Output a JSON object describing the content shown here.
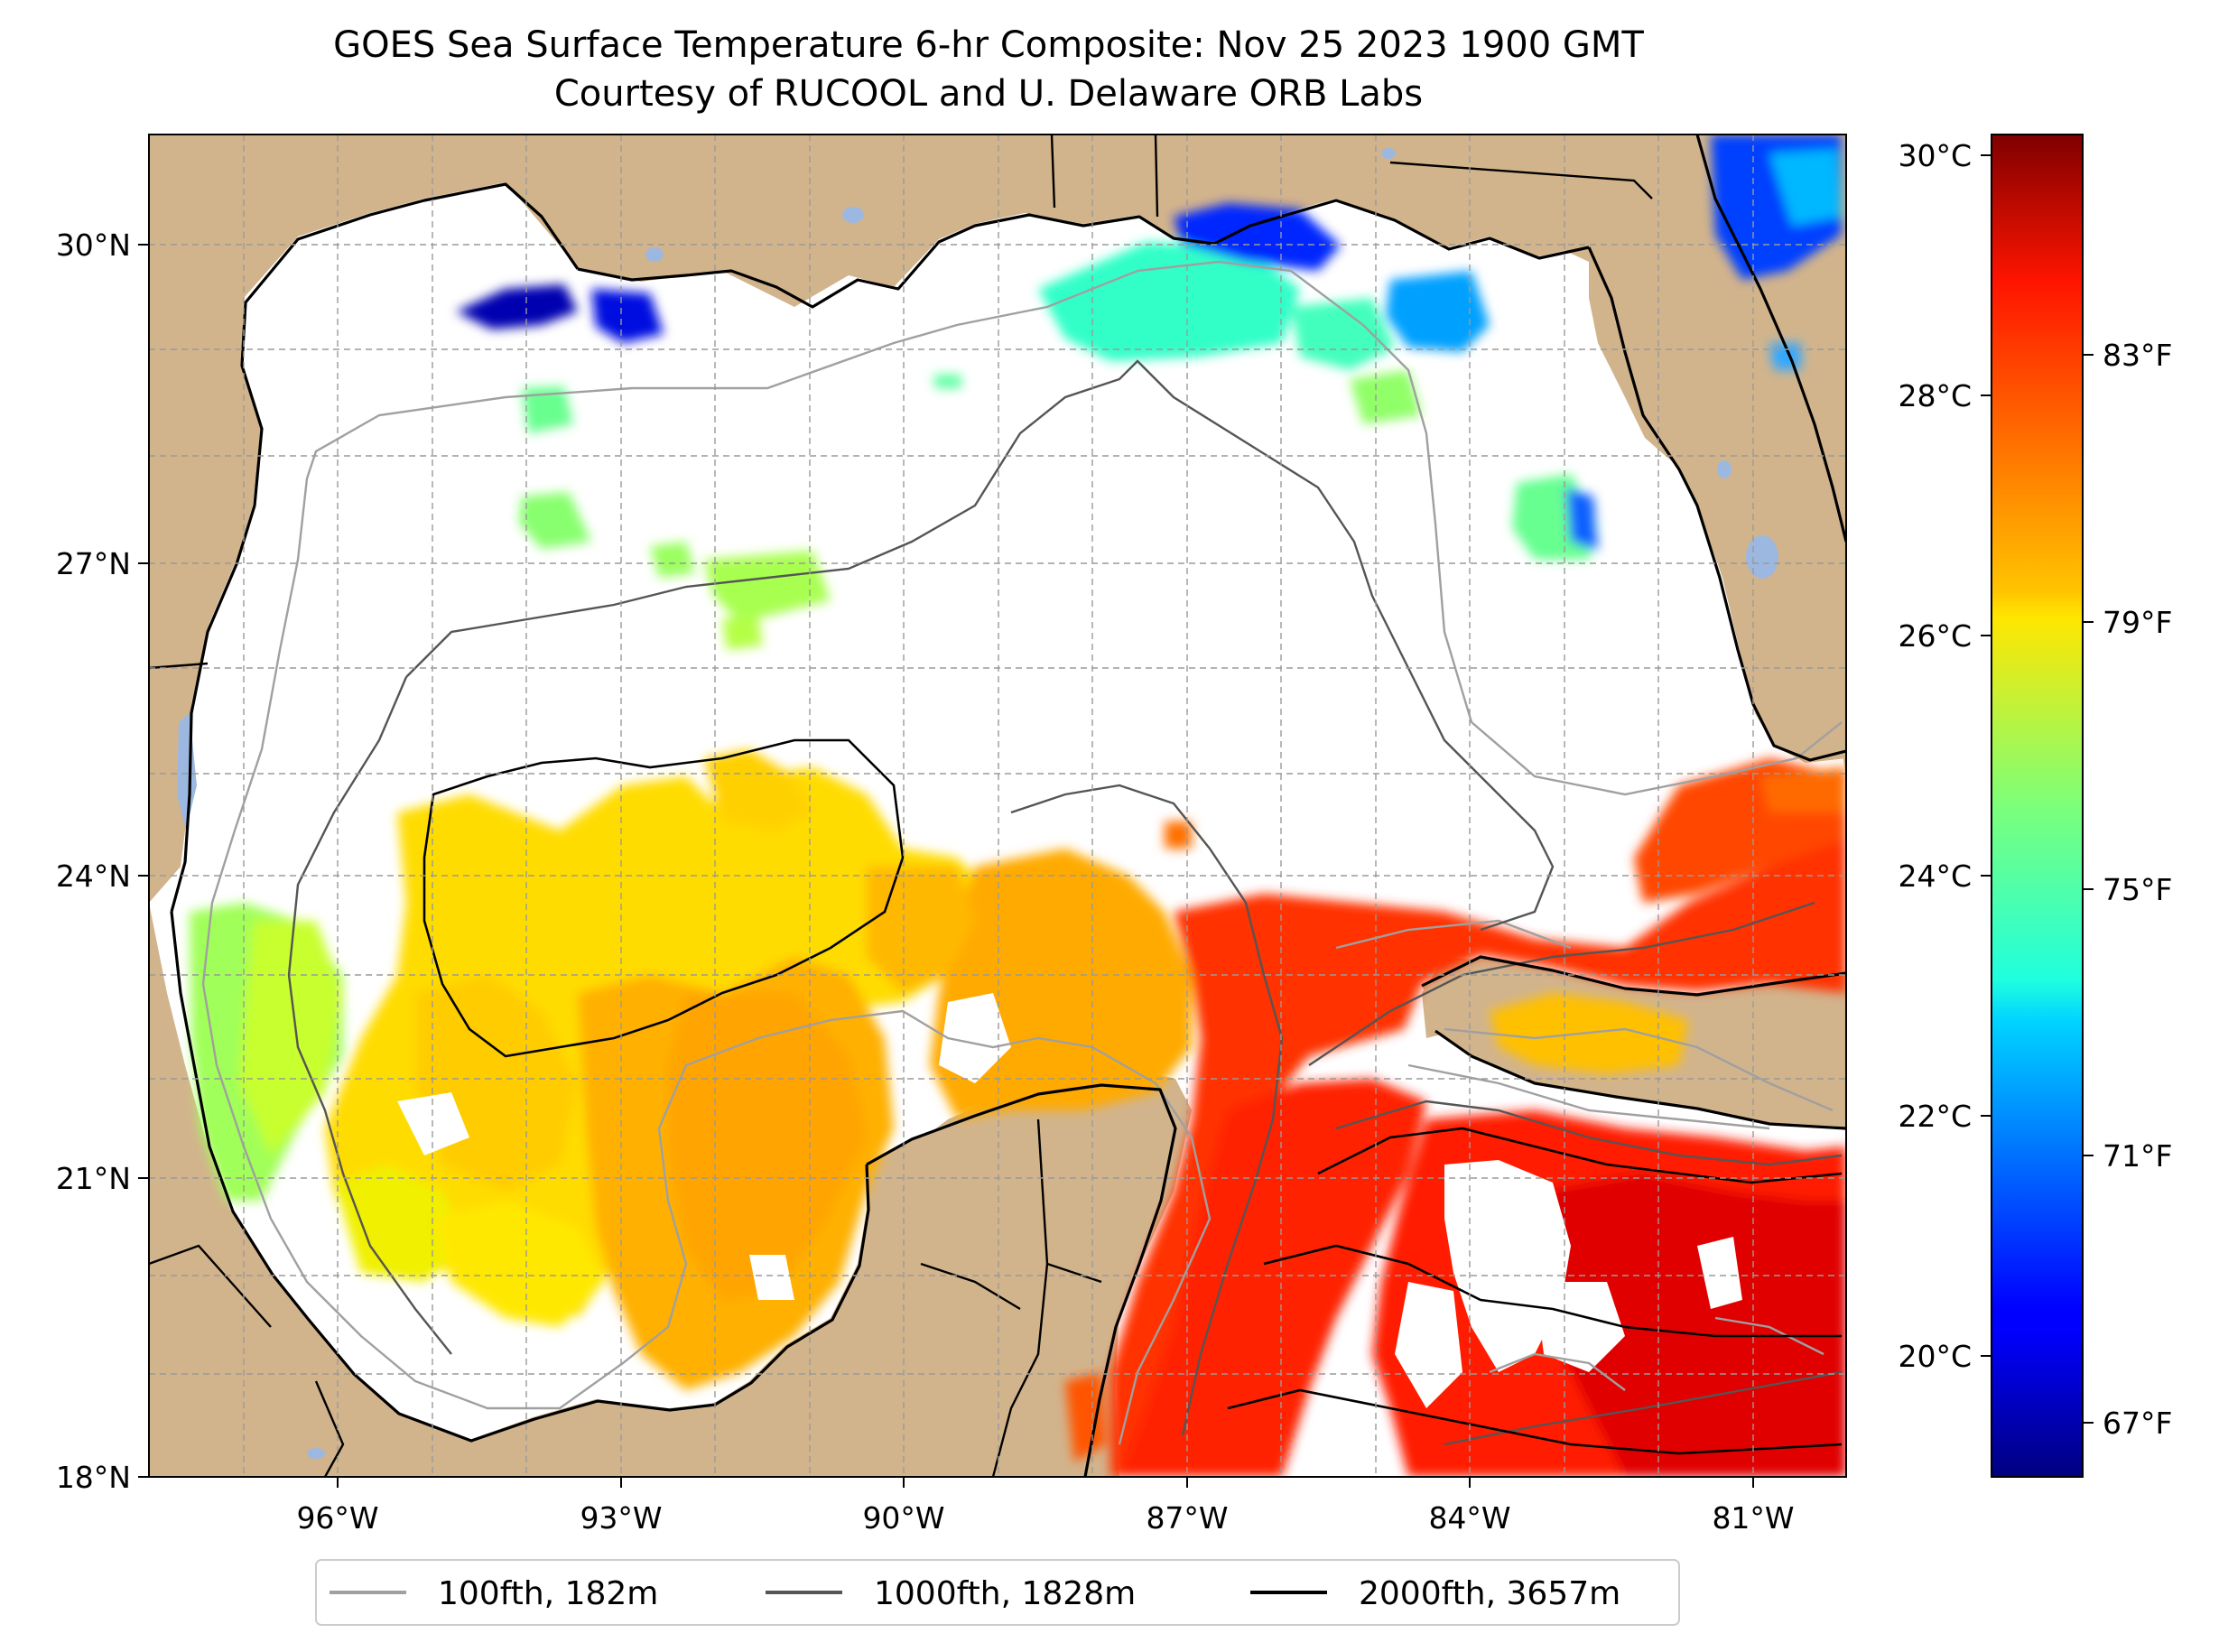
{
  "title": {
    "line1": "GOES Sea Surface Temperature 6-hr Composite: Nov 25 2023 1900 GMT",
    "line2": "Courtesy of RUCOOL and U. Delaware ORB Labs"
  },
  "map": {
    "lon_range": [
      -98,
      -80
    ],
    "lat_range": [
      18,
      31
    ],
    "lon_labels": [
      "96°W",
      "93°W",
      "90°W",
      "87°W",
      "84°W",
      "81°W"
    ],
    "lat_labels": [
      "30°N",
      "27°N",
      "24°N",
      "21°N",
      "18°N"
    ],
    "colors": {
      "land": "#d2b48c",
      "water_nodata": "#ffffff",
      "lakes": "#9db8e0"
    }
  },
  "colorbar": {
    "colormap": "jet",
    "celsius_labels": [
      "30°C",
      "28°C",
      "26°C",
      "24°C",
      "22°C",
      "20°C"
    ],
    "fahrenheit_labels": [
      "83°F",
      "79°F",
      "75°F",
      "71°F",
      "67°F"
    ],
    "min_c": 18.9,
    "max_c": 30.1
  },
  "legend": {
    "items": [
      {
        "label": "100fth, 182m",
        "color": "#a0a0a0"
      },
      {
        "label": "1000fth, 1828m",
        "color": "#555555"
      },
      {
        "label": "2000fth, 3657m",
        "color": "#000000"
      }
    ]
  }
}
